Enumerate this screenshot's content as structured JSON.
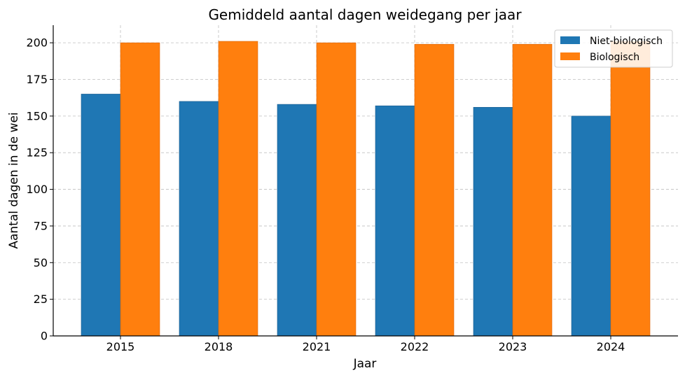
{
  "chart_data": {
    "type": "bar",
    "title": "Gemiddeld aantal dagen weidegang per jaar",
    "xlabel": "Jaar",
    "ylabel": "Aantal dagen in de wei",
    "categories": [
      "2015",
      "2018",
      "2021",
      "2022",
      "2023",
      "2024"
    ],
    "series": [
      {
        "name": "Niet-biologisch",
        "color": "#1f77b4",
        "values": [
          165,
          160,
          158,
          157,
          156,
          150
        ]
      },
      {
        "name": "Biologisch",
        "color": "#ff7f0e",
        "values": [
          200,
          201,
          200,
          199,
          199,
          201
        ]
      }
    ],
    "ylim": [
      0,
      212
    ],
    "yticks": [
      0,
      25,
      50,
      75,
      100,
      125,
      150,
      175,
      200
    ],
    "grid": true,
    "legend_position": "top-right"
  }
}
